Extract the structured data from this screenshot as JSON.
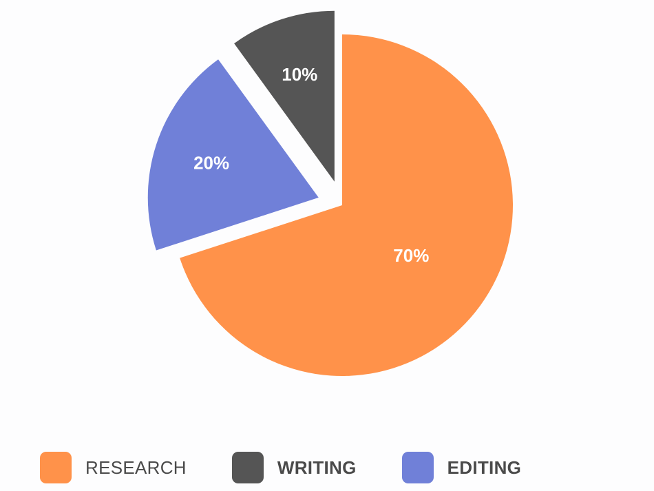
{
  "chart_data": {
    "type": "pie",
    "slices": [
      {
        "name": "RESEARCH",
        "value": 70,
        "label": "70%",
        "color": "#ff924a",
        "exploded": false
      },
      {
        "name": "EDITING",
        "value": 20,
        "label": "20%",
        "color": "#7080d8",
        "exploded": true
      },
      {
        "name": "WRITING",
        "value": 10,
        "label": "10%",
        "color": "#555555",
        "exploded": true
      }
    ],
    "legend_placement": "bottom",
    "legend": [
      {
        "name": "RESEARCH",
        "color": "#ff924a",
        "bold": false
      },
      {
        "name": "WRITING",
        "color": "#555555",
        "bold": true
      },
      {
        "name": "EDITING",
        "color": "#7080d8",
        "bold": true
      }
    ]
  }
}
